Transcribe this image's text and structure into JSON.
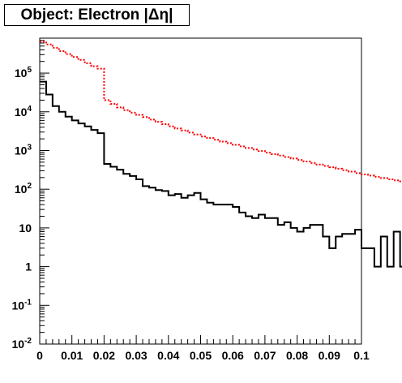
{
  "chart_data": {
    "type": "step-histogram",
    "title": "Object: Electron |Δη|",
    "xlabel": "",
    "ylabel": "",
    "yscale": "log",
    "xlim": [
      0,
      0.1
    ],
    "ylim": [
      0.01,
      800000
    ],
    "x_ticks": [
      "0",
      "0.01",
      "0.02",
      "0.03",
      "0.04",
      "0.05",
      "0.06",
      "0.07",
      "0.08",
      "0.09",
      "0.1"
    ],
    "y_ticks": [
      {
        "mantissa": "10",
        "exp": "-2"
      },
      {
        "mantissa": "10",
        "exp": "-1"
      },
      {
        "mantissa": "1",
        "exp": ""
      },
      {
        "mantissa": "10",
        "exp": ""
      },
      {
        "mantissa": "10",
        "exp": "2"
      },
      {
        "mantissa": "10",
        "exp": "3"
      },
      {
        "mantissa": "10",
        "exp": "4"
      },
      {
        "mantissa": "10",
        "exp": "5"
      }
    ],
    "bin_width": 0.002,
    "series": [
      {
        "color": "#ff0000",
        "style": "dotted",
        "values": [
          650000,
          550000,
          450000,
          370000,
          310000,
          260000,
          220000,
          180000,
          150000,
          130000,
          20000,
          16000,
          13000,
          11000,
          9500,
          8300,
          7300,
          6300,
          5500,
          4800,
          4200,
          3700,
          3300,
          2900,
          2600,
          2300,
          2100,
          1900,
          1700,
          1550,
          1400,
          1280,
          1160,
          1060,
          970,
          880,
          810,
          740,
          680,
          620,
          570,
          520,
          475,
          435,
          400,
          370,
          340,
          310,
          285,
          260,
          240,
          225,
          210,
          195,
          180,
          170,
          160,
          150,
          140,
          130
        ]
      },
      {
        "color": "#000000",
        "style": "solid",
        "values": [
          60000,
          28000,
          14000,
          10000,
          7500,
          6000,
          5000,
          4200,
          3400,
          2800,
          450,
          380,
          320,
          250,
          220,
          180,
          120,
          110,
          95,
          90,
          70,
          75,
          60,
          70,
          80,
          55,
          45,
          40,
          40,
          40,
          35,
          25,
          20,
          18,
          22,
          18,
          18,
          12,
          14,
          10,
          8,
          10,
          12,
          12,
          6,
          3,
          6,
          7,
          7,
          9,
          3,
          3,
          1,
          6,
          1,
          8,
          1,
          1,
          1,
          3
        ]
      }
    ]
  }
}
